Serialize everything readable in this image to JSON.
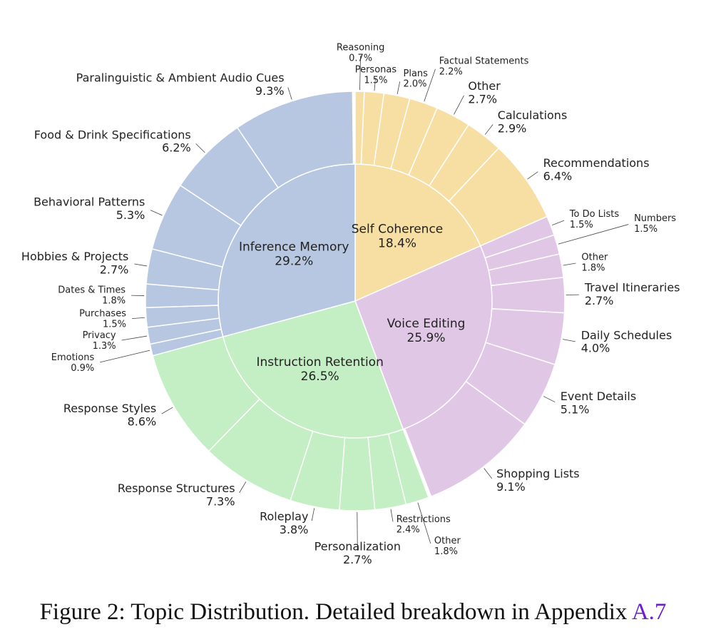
{
  "chart_data": {
    "type": "sunburst",
    "groups": [
      {
        "name": "Self Coherence",
        "value": 18.4,
        "value_label": "18.4%",
        "color": "#f7dfa3",
        "children": [
          {
            "name": "Reasoning",
            "value": 0.7,
            "value_label": "0.7%"
          },
          {
            "name": "Personas",
            "value": 1.5,
            "value_label": "1.5%"
          },
          {
            "name": "Plans",
            "value": 2.0,
            "value_label": "2.0%"
          },
          {
            "name": "Factual Statements",
            "value": 2.2,
            "value_label": "2.2%"
          },
          {
            "name": "Other",
            "value": 2.7,
            "value_label": "2.7%"
          },
          {
            "name": "Calculations",
            "value": 2.9,
            "value_label": "2.9%"
          },
          {
            "name": "Recommendations",
            "value": 6.4,
            "value_label": "6.4%"
          }
        ]
      },
      {
        "name": "Voice Editing",
        "value": 25.9,
        "value_label": "25.9%",
        "color": "#e1c7e6",
        "children": [
          {
            "name": "To Do Lists",
            "value": 1.5,
            "value_label": "1.5%"
          },
          {
            "name": "Numbers",
            "value": 1.5,
            "value_label": "1.5%"
          },
          {
            "name": "Other",
            "value": 1.8,
            "value_label": "1.8%"
          },
          {
            "name": "Travel Itineraries",
            "value": 2.7,
            "value_label": "2.7%"
          },
          {
            "name": "Daily Schedules",
            "value": 4.0,
            "value_label": "4.0%"
          },
          {
            "name": "Event Details",
            "value": 5.1,
            "value_label": "5.1%"
          },
          {
            "name": "Shopping Lists",
            "value": 9.1,
            "value_label": "9.1%"
          }
        ]
      },
      {
        "name": "Instruction Retention",
        "value": 26.5,
        "value_label": "26.5%",
        "color": "#c4eec4",
        "children": [
          {
            "name": "Other",
            "value": 1.8,
            "value_label": "1.8%"
          },
          {
            "name": "Restrictions",
            "value": 2.4,
            "value_label": "2.4%"
          },
          {
            "name": "Personalization",
            "value": 2.7,
            "value_label": "2.7%"
          },
          {
            "name": "Roleplay",
            "value": 3.8,
            "value_label": "3.8%"
          },
          {
            "name": "Response Structures",
            "value": 7.3,
            "value_label": "7.3%"
          },
          {
            "name": "Response Styles",
            "value": 8.6,
            "value_label": "8.6%"
          }
        ]
      },
      {
        "name": "Inference Memory",
        "value": 29.2,
        "value_label": "29.2%",
        "color": "#b7c7e1",
        "children": [
          {
            "name": "Emotions",
            "value": 0.9,
            "value_label": "0.9%"
          },
          {
            "name": "Privacy",
            "value": 1.3,
            "value_label": "1.3%"
          },
          {
            "name": "Purchases",
            "value": 1.5,
            "value_label": "1.5%"
          },
          {
            "name": "Dates & Times",
            "value": 1.8,
            "value_label": "1.8%"
          },
          {
            "name": "Hobbies & Projects",
            "value": 2.7,
            "value_label": "2.7%"
          },
          {
            "name": "Behavioral Patterns",
            "value": 5.3,
            "value_label": "5.3%"
          },
          {
            "name": "Food & Drink Specifications",
            "value": 6.2,
            "value_label": "6.2%"
          },
          {
            "name": "Paralinguistic & Ambient Audio Cues",
            "value": 9.3,
            "value_label": "9.3%"
          }
        ]
      }
    ],
    "caption": {
      "text": "Figure 2: Topic Distribution. Detailed breakdown in Appendix",
      "link": "A.7"
    }
  }
}
